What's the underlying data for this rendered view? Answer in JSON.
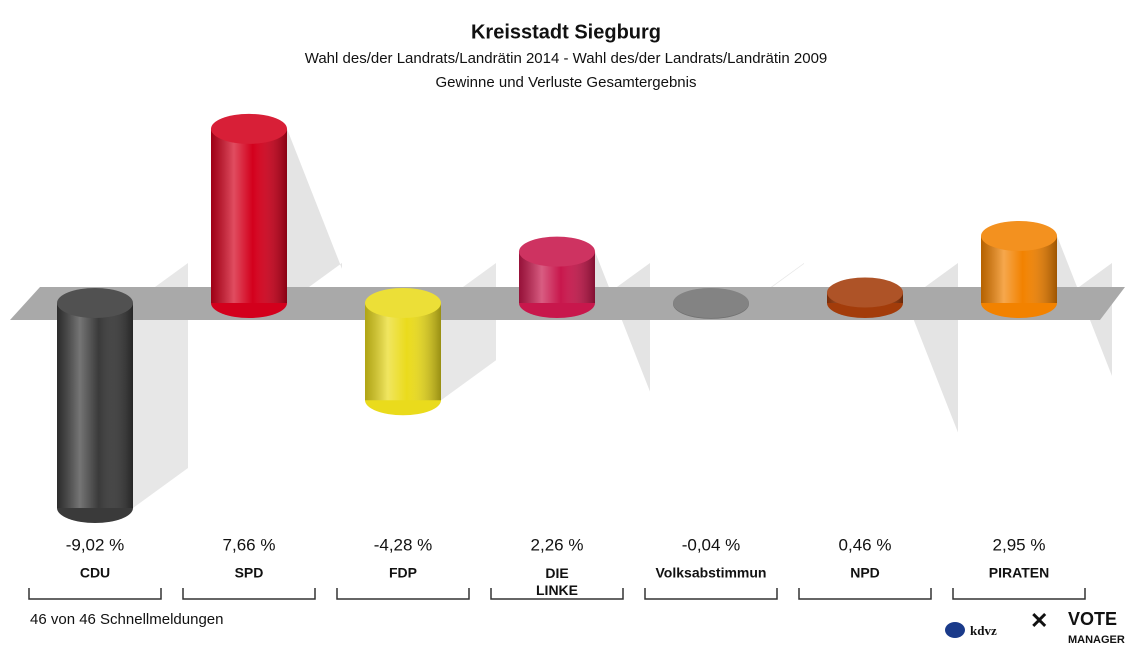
{
  "chart_data": {
    "type": "bar",
    "title": "Kreisstadt Siegburg",
    "subtitle": [
      "Wahl des/der Landrats/Landrätin 2014 - Wahl des/der Landrats/Landrätin 2009",
      "Gewinne und Verluste Gesamtergebnis"
    ],
    "categories": [
      "CDU",
      "SPD",
      "FDP",
      "DIE LINKE",
      "Volksabstimmun",
      "NPD",
      "PIRATEN"
    ],
    "values": [
      -9.02,
      7.66,
      -4.28,
      2.26,
      -0.04,
      0.46,
      2.95
    ],
    "value_labels": [
      "-9,02 %",
      "7,66 %",
      "-4,28 %",
      "2,26 %",
      "-0,04 %",
      "0,46 %",
      "2,95 %"
    ],
    "colors": [
      "#3a3a3a",
      "#d3001c",
      "#eadb1c",
      "#c8174c",
      "#727272",
      "#a33c0a",
      "#f28200"
    ],
    "footnote": "46 von 46 Schnellmeldungen",
    "logo": [
      "kdvz",
      "VOTE",
      "MANAGER"
    ]
  }
}
